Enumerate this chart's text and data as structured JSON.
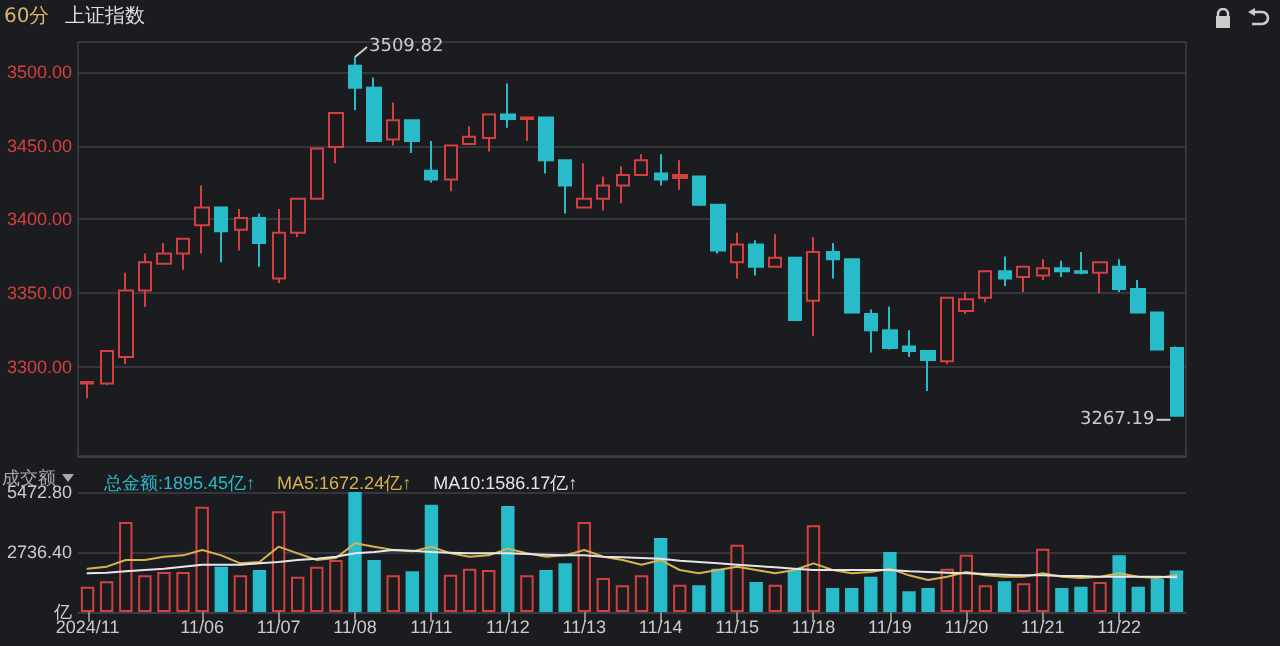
{
  "chart_data": [
    {
      "type": "candlestick",
      "title": "上证指数",
      "subtitle": "60分",
      "categories": [
        null,
        null,
        null,
        null,
        null,
        null,
        null,
        null,
        null,
        null,
        null,
        null,
        null,
        null,
        null,
        null,
        null,
        null,
        null,
        null,
        null,
        null,
        null,
        null,
        null,
        null,
        null,
        null,
        null,
        null,
        null,
        null,
        null,
        null,
        null,
        null,
        null,
        null,
        null,
        null,
        null,
        null,
        null,
        null,
        null,
        null,
        null,
        null,
        null,
        null,
        null,
        null,
        null,
        null,
        null,
        null,
        null,
        null
      ],
      "ohlc": [
        [
          3289,
          3290,
          3279,
          3290
        ],
        [
          3289,
          3311,
          3288,
          3311
        ],
        [
          3307,
          3364,
          3302,
          3352
        ],
        [
          3352,
          3377,
          3341,
          3371
        ],
        [
          3370,
          3384,
          3370,
          3377
        ],
        [
          3377,
          3387,
          3366,
          3387
        ],
        [
          3396,
          3423,
          3377,
          3408
        ],
        [
          3408,
          3408,
          3371,
          3392
        ],
        [
          3393,
          3407,
          3379,
          3401
        ],
        [
          3401,
          3404,
          3368,
          3384
        ],
        [
          3360,
          3407,
          3357,
          3391
        ],
        [
          3391,
          3414,
          3388,
          3414
        ],
        [
          3414,
          3448,
          3414,
          3448
        ],
        [
          3449,
          3472,
          3438,
          3472
        ],
        [
          3504,
          3509.82,
          3474,
          3489
        ],
        [
          3489,
          3496,
          3453,
          3453
        ],
        [
          3454,
          3479,
          3450,
          3467
        ],
        [
          3467,
          3467,
          3445,
          3453
        ],
        [
          3433,
          3453,
          3425,
          3427
        ],
        [
          3427,
          3450,
          3419,
          3450
        ],
        [
          3451,
          3463,
          3451,
          3456
        ],
        [
          3455,
          3471,
          3446,
          3471
        ],
        [
          3471,
          3492,
          3462,
          3468
        ],
        [
          3468,
          3469,
          3453,
          3469
        ],
        [
          3469,
          3469,
          3431,
          3440
        ],
        [
          3440,
          3440,
          3404,
          3423
        ],
        [
          3408,
          3438,
          3408,
          3414
        ],
        [
          3414,
          3429,
          3406,
          3423
        ],
        [
          3423,
          3436,
          3411,
          3430
        ],
        [
          3430,
          3444,
          3430,
          3440
        ],
        [
          3431,
          3444,
          3423,
          3427
        ],
        [
          3428,
          3440,
          3420,
          3430
        ],
        [
          3429,
          3429,
          3409,
          3410
        ],
        [
          3410,
          3410,
          3377,
          3379
        ],
        [
          3371,
          3391,
          3360,
          3383
        ],
        [
          3383,
          3386,
          3362,
          3368
        ],
        [
          3368,
          3390,
          3368,
          3374
        ],
        [
          3374,
          3374,
          3332,
          3332
        ],
        [
          3345,
          3388,
          3321,
          3378
        ],
        [
          3378,
          3384,
          3360,
          3373
        ],
        [
          3373,
          3373,
          3337,
          3337
        ],
        [
          3336,
          3339,
          3310,
          3325
        ],
        [
          3325,
          3341,
          3312,
          3313
        ],
        [
          3314,
          3325,
          3307,
          3311
        ],
        [
          3311,
          3311,
          3284,
          3305
        ],
        [
          3304,
          3347,
          3302,
          3347
        ],
        [
          3338,
          3351,
          3336,
          3346
        ],
        [
          3347,
          3365,
          3344,
          3365
        ],
        [
          3365,
          3375,
          3355,
          3360
        ],
        [
          3361,
          3368,
          3351,
          3368
        ],
        [
          3362,
          3373,
          3359,
          3367
        ],
        [
          3367,
          3372,
          3361,
          3365
        ],
        [
          3365,
          3378,
          3363,
          3364
        ],
        [
          3364,
          3371,
          3350,
          3371
        ],
        [
          3368,
          3373,
          3351,
          3353
        ],
        [
          3353,
          3359,
          3337,
          3337
        ],
        [
          3337,
          3337,
          3312,
          3312
        ],
        [
          3313,
          3314,
          3267.19,
          3267.19
        ]
      ],
      "colors": [
        "#d4403f",
        "#d4403f",
        "#d4403f",
        "#d4403f",
        "#d4403f",
        "#d4403f",
        "#d4403f",
        "#28bccb",
        "#d4403f",
        "#28bccb",
        "#d4403f",
        "#d4403f",
        "#d4403f",
        "#d4403f",
        "#28bccb",
        "#28bccb",
        "#d4403f",
        "#28bccb",
        "#28bccb",
        "#d4403f",
        "#d4403f",
        "#d4403f",
        "#28bccb",
        "#d4403f",
        "#28bccb",
        "#28bccb",
        "#d4403f",
        "#d4403f",
        "#d4403f",
        "#d4403f",
        "#28bccb",
        "#d4403f",
        "#28bccb",
        "#28bccb",
        "#d4403f",
        "#28bccb",
        "#d4403f",
        "#28bccb",
        "#d4403f",
        "#28bccb",
        "#28bccb",
        "#28bccb",
        "#28bccb",
        "#28bccb",
        "#28bccb",
        "#d4403f",
        "#d4403f",
        "#d4403f",
        "#28bccb",
        "#d4403f",
        "#d4403f",
        "#28bccb",
        "#28bccb",
        "#d4403f",
        "#28bccb",
        "#28bccb",
        "#28bccb",
        "#28bccb"
      ],
      "ylim": [
        3240,
        3520
      ],
      "yticks": [
        {
          "value": 3300,
          "label": "3300.00"
        },
        {
          "value": 3350,
          "label": "3350.00"
        },
        {
          "value": 3400,
          "label": "3400.00"
        },
        {
          "value": 3450,
          "label": "3450.00"
        },
        {
          "value": 3500,
          "label": "3500.00"
        }
      ],
      "grid": "y",
      "tick_labels": "y",
      "annotations": [
        "3509.82",
        "3267.19"
      ]
    },
    {
      "type": "bar",
      "ylabel": "成交额",
      "categories": [
        "2024/11",
        null,
        null,
        null,
        null,
        null,
        "11/06",
        null,
        null,
        null,
        "11/07",
        null,
        null,
        null,
        "11/08",
        null,
        null,
        null,
        "11/11",
        null,
        null,
        null,
        "11/12",
        null,
        null,
        null,
        "11/13",
        null,
        null,
        null,
        "11/14",
        null,
        null,
        null,
        "11/15",
        null,
        null,
        null,
        "11/18",
        null,
        null,
        null,
        "11/19",
        null,
        null,
        null,
        "11/20",
        null,
        null,
        null,
        "11/21",
        null,
        null,
        null,
        "11/22",
        null,
        null,
        null
      ],
      "series": [
        {
          "name": "总金额:1895.45亿↑",
          "type": "bar",
          "colors": [
            "#d4403f",
            "#d4403f",
            "#d4403f",
            "#d4403f",
            "#d4403f",
            "#d4403f",
            "#d4403f",
            "#28bccb",
            "#d4403f",
            "#28bccb",
            "#d4403f",
            "#d4403f",
            "#d4403f",
            "#d4403f",
            "#28bccb",
            "#28bccb",
            "#d4403f",
            "#28bccb",
            "#28bccb",
            "#d4403f",
            "#d4403f",
            "#d4403f",
            "#28bccb",
            "#d4403f",
            "#28bccb",
            "#28bccb",
            "#d4403f",
            "#d4403f",
            "#d4403f",
            "#d4403f",
            "#28bccb",
            "#d4403f",
            "#28bccb",
            "#28bccb",
            "#d4403f",
            "#28bccb",
            "#d4403f",
            "#28bccb",
            "#d4403f",
            "#28bccb",
            "#28bccb",
            "#28bccb",
            "#28bccb",
            "#28bccb",
            "#28bccb",
            "#d4403f",
            "#d4403f",
            "#d4403f",
            "#28bccb",
            "#d4403f",
            "#d4403f",
            "#28bccb",
            "#28bccb",
            "#d4403f",
            "#28bccb",
            "#28bccb",
            "#28bccb",
            "#28bccb"
          ],
          "values": [
            1155,
            1398,
            4104,
            1672,
            1824,
            1824,
            4803,
            2067,
            1672,
            1915,
            4590,
            1611,
            2067,
            2371,
            5472.8,
            2371,
            1672,
            1854,
            4894,
            1702,
            1976,
            1915,
            4834,
            1672,
            1915,
            2219,
            4104,
            1550,
            1216,
            1672,
            3374,
            1246,
            1216,
            1976,
            3070,
            1368,
            1246,
            1915,
            3952,
            1094,
            1094,
            1611,
            2736,
            942,
            1094,
            1976,
            2614,
            1216,
            1398,
            1307,
            2888,
            1094,
            1155,
            1368,
            2584,
            1155,
            1520,
            1895.45
          ]
        },
        {
          "name": "MA5:1672.24亿↑",
          "type": "line",
          "color": "#d9b24c",
          "values": [
            1976,
            2067,
            2371,
            2371,
            2523,
            2584,
            2827,
            2584,
            2219,
            2280,
            2979,
            2675,
            2371,
            2462,
            3131,
            2979,
            2827,
            2766,
            2979,
            2675,
            2523,
            2584,
            2888,
            2675,
            2523,
            2584,
            2827,
            2523,
            2371,
            2158,
            2371,
            1915,
            1763,
            1915,
            2067,
            1915,
            1763,
            1915,
            2219,
            1915,
            1763,
            1824,
            1976,
            1672,
            1459,
            1611,
            1824,
            1672,
            1611,
            1611,
            1763,
            1611,
            1550,
            1611,
            1763,
            1611,
            1550,
            1672.24
          ]
        },
        {
          "name": "MA10:1586.17亿↑",
          "type": "line",
          "color": "#e6e6e6",
          "values": [
            1763,
            1794,
            1854,
            1915,
            1976,
            2067,
            2158,
            2158,
            2158,
            2219,
            2280,
            2371,
            2432,
            2523,
            2675,
            2736,
            2827,
            2797,
            2736,
            2706,
            2675,
            2675,
            2675,
            2645,
            2614,
            2584,
            2584,
            2523,
            2493,
            2462,
            2432,
            2341,
            2280,
            2219,
            2158,
            2098,
            2037,
            1976,
            1915,
            1915,
            1915,
            1915,
            1915,
            1854,
            1824,
            1794,
            1763,
            1733,
            1702,
            1672,
            1672,
            1642,
            1642,
            1611,
            1611,
            1611,
            1611,
            1586.17
          ]
        }
      ],
      "ylim": [
        0,
        5472.8
      ],
      "yticks": [
        {
          "value": 0,
          "label": "亿"
        },
        {
          "value": 2736.4,
          "label": "2736.40"
        },
        {
          "value": 5472.8,
          "label": "5472.80"
        }
      ],
      "grid": "y",
      "legend": "top left",
      "marker": "none",
      "line_style": "solid"
    }
  ]
}
